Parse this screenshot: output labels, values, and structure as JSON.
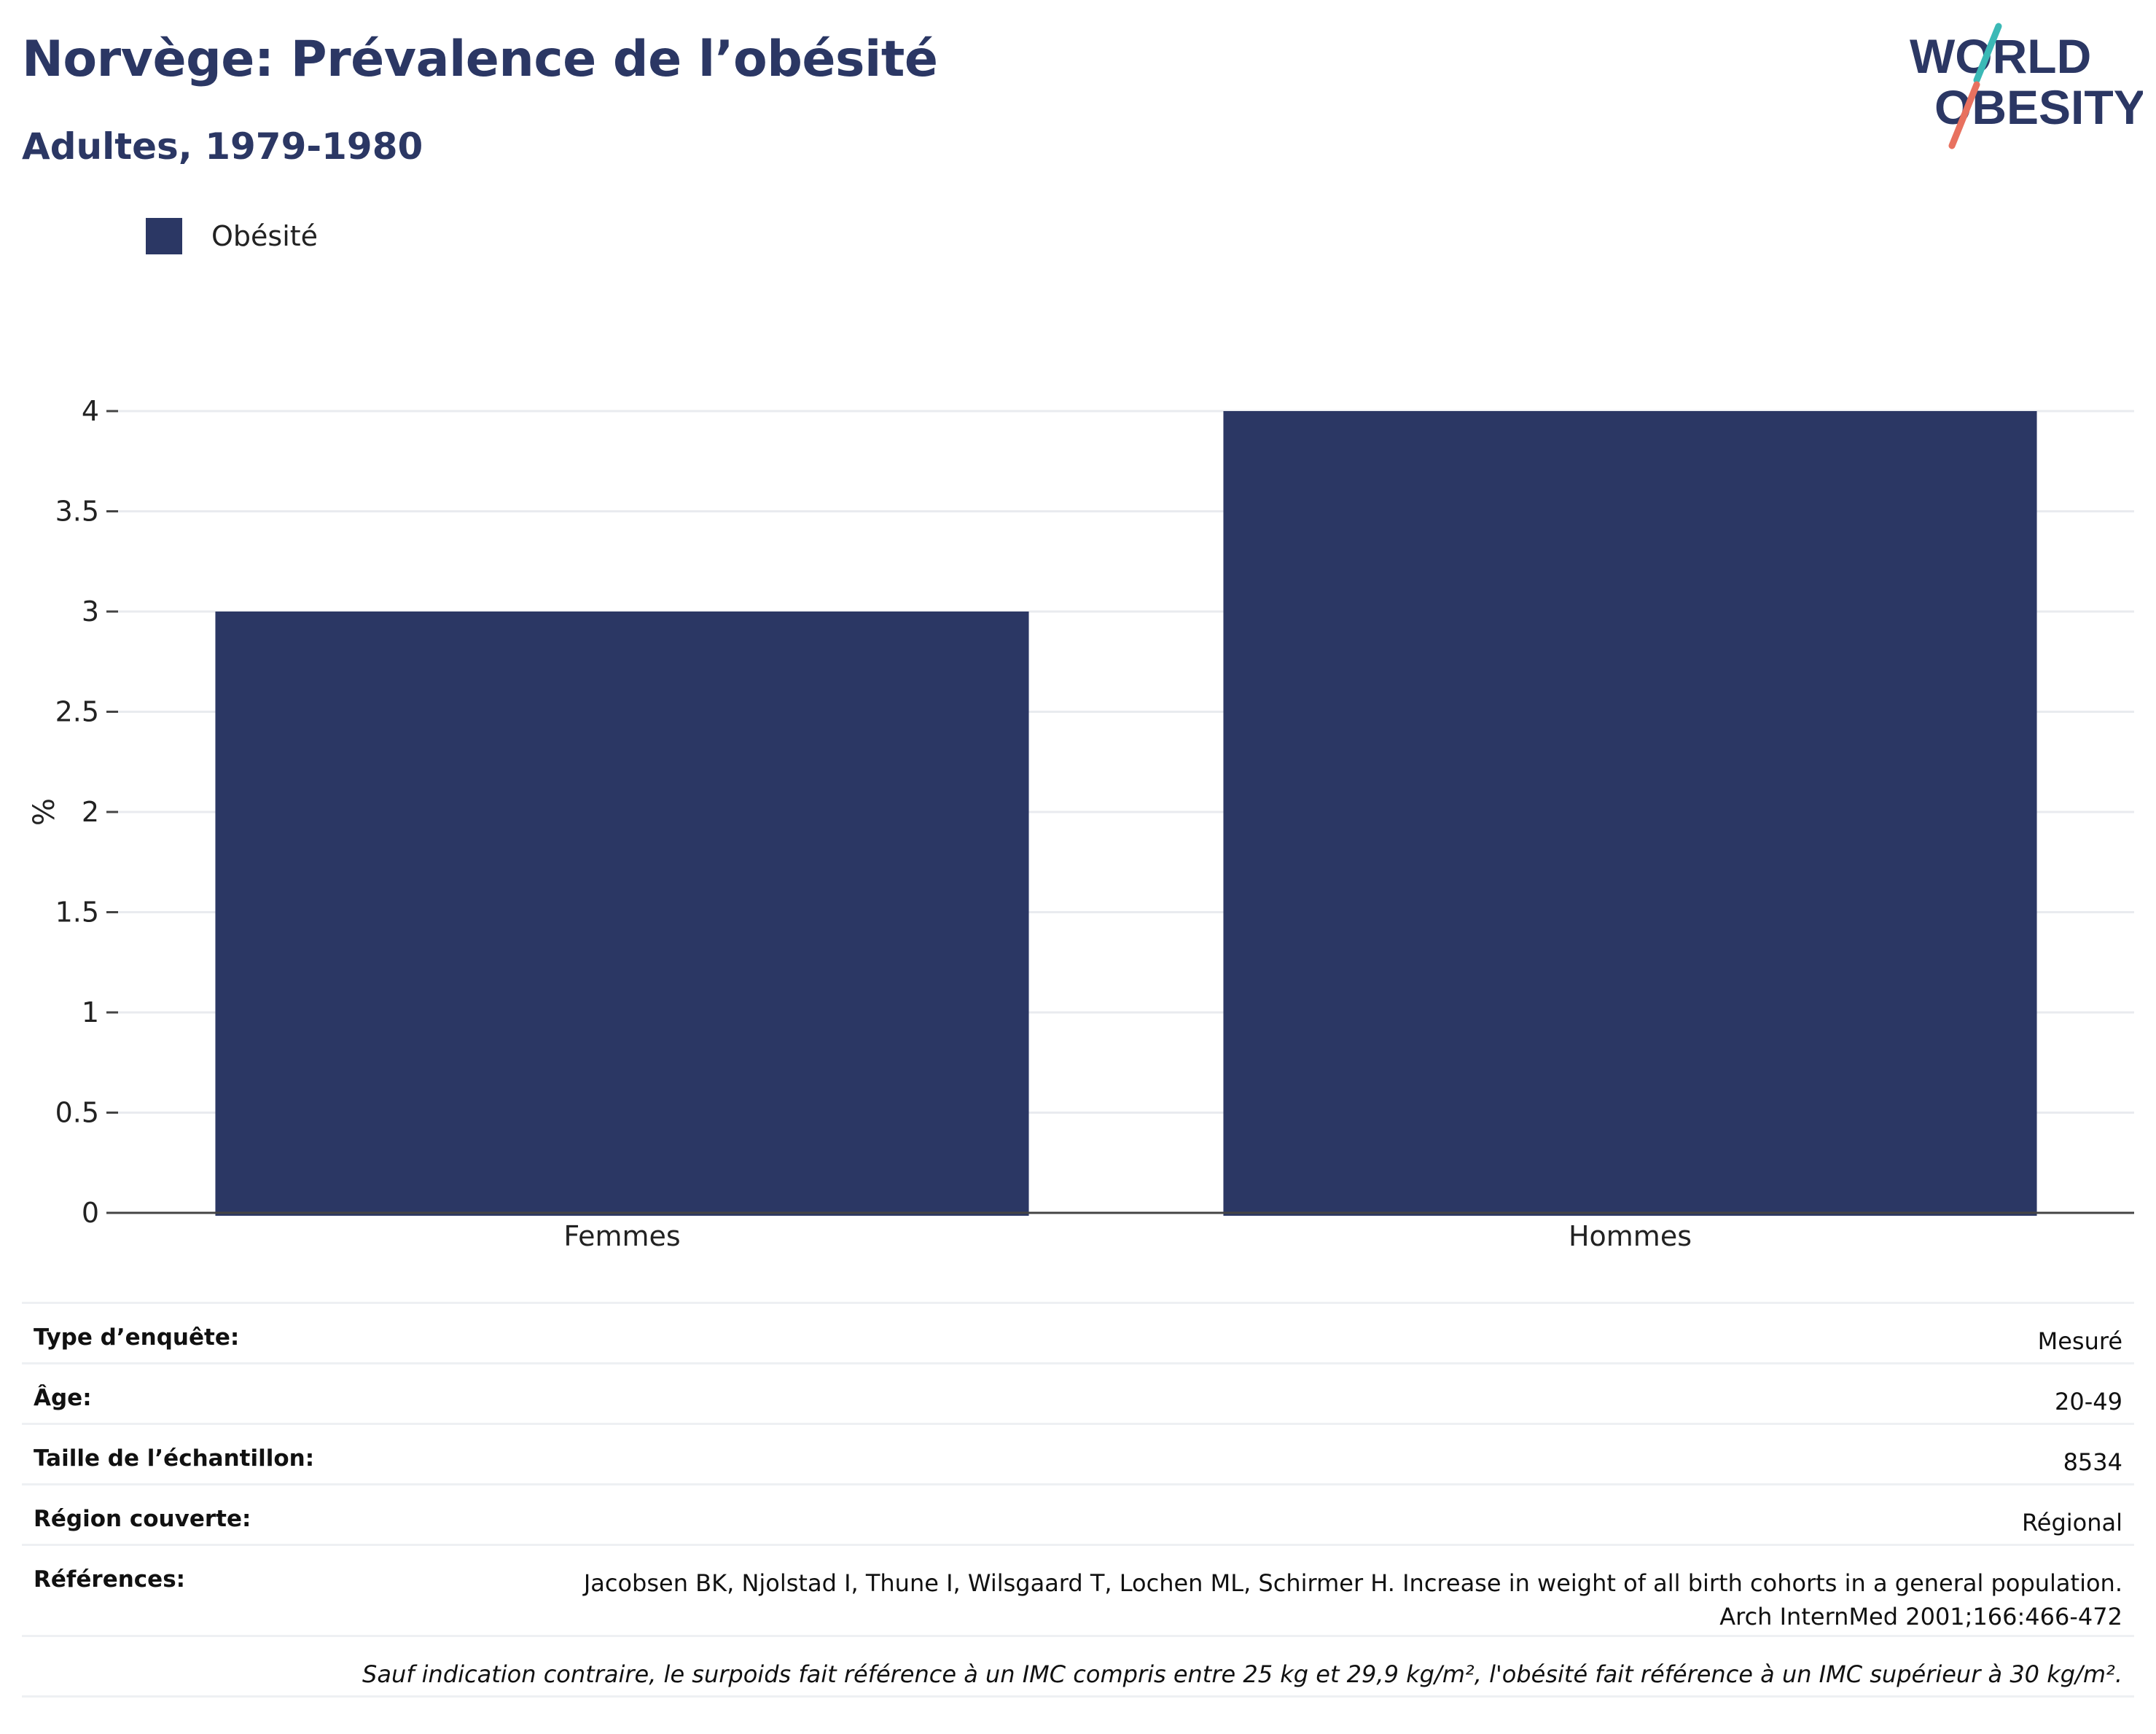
{
  "header": {
    "title": "Norvège: Prévalence de l’obésité",
    "subtitle": "Adultes, 1979-1980"
  },
  "logo": {
    "line1": "WORLD",
    "line2": "OBESITY"
  },
  "colors": {
    "bar": "#2b3764",
    "text_dark": "#2b3764",
    "grid": "#e9ebef",
    "logo_teal": "#3bb9b6",
    "logo_coral": "#e8715f"
  },
  "chart_data": {
    "type": "bar",
    "categories": [
      "Femmes",
      "Hommes"
    ],
    "series": [
      {
        "name": "Obésité",
        "values": [
          3,
          4
        ]
      }
    ],
    "ylabel": "%",
    "ylim": [
      0,
      4
    ],
    "yticks": [
      "0",
      "0.5",
      "1",
      "1.5",
      "2",
      "2.5",
      "3",
      "3.5",
      "4"
    ],
    "grid": true,
    "legend_position": "top-left"
  },
  "table": {
    "rows": [
      {
        "label": "Type d’enquête:",
        "value": "Mesuré"
      },
      {
        "label": "Âge:",
        "value": "20-49"
      },
      {
        "label": "Taille de l’échantillon:",
        "value": "8534"
      },
      {
        "label": "Région couverte:",
        "value": "Régional"
      },
      {
        "label": "Références:",
        "value_line1": "Jacobsen BK, Njolstad I, Thune I, Wilsgaard T, Lochen ML, Schirmer H. Increase in weight of all birth cohorts in a general population.",
        "value_line2": "Arch InternMed 2001;166:466-472"
      }
    ],
    "note": "Sauf indication contraire, le surpoids fait référence à un IMC compris entre 25 kg et 29,9 kg/m², l'obésité fait référence à un IMC supérieur à 30 kg/m²."
  }
}
